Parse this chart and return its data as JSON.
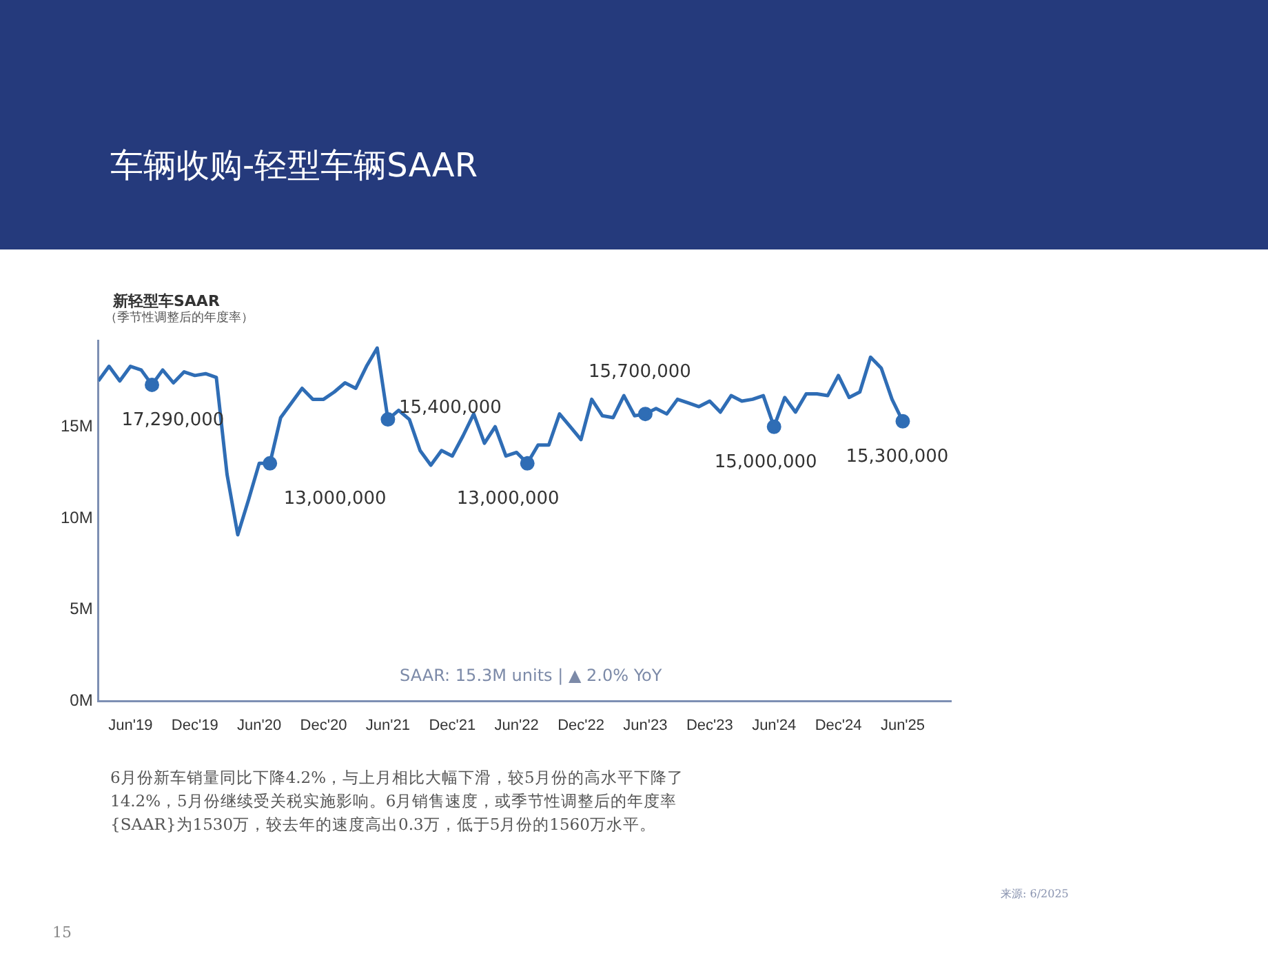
{
  "chart_data": {
    "type": "line",
    "title": "车辆收购-轻型车辆SAAR",
    "subtitle": "新轻型车SAAR",
    "ylabel": "（季节性调整后的年度率）",
    "categories": [
      null,
      null,
      null,
      "Jun'19",
      null,
      null,
      null,
      null,
      null,
      "Dec'19",
      null,
      null,
      null,
      null,
      null,
      "Jun'20",
      null,
      null,
      null,
      null,
      null,
      "Dec'20",
      null,
      null,
      null,
      null,
      null,
      "Jun'21",
      null,
      null,
      null,
      null,
      null,
      "Dec'21",
      null,
      null,
      null,
      null,
      null,
      "Jun'22",
      null,
      null,
      null,
      null,
      null,
      "Dec'22",
      null,
      null,
      null,
      null,
      null,
      "Jun'23",
      null,
      null,
      null,
      null,
      null,
      "Dec'23",
      null,
      null,
      null,
      null,
      null,
      "Jun'24",
      null,
      null,
      null,
      null,
      null,
      "Dec'24",
      null,
      null,
      null,
      null,
      null,
      "Jun'25"
    ],
    "series": [
      {
        "color": "#2f6db5",
        "values": [
          17500000,
          18300000,
          17500000,
          18300000,
          18100000,
          17290000,
          18100000,
          17400000,
          18000000,
          17800000,
          17900000,
          17700000,
          12400000,
          9100000,
          11000000,
          13000000,
          13000000,
          15500000,
          16300000,
          17100000,
          16500000,
          16500000,
          16900000,
          17400000,
          17100000,
          18300000,
          19300000,
          15400000,
          15900000,
          15400000,
          13700000,
          12900000,
          13700000,
          13400000,
          14500000,
          15700000,
          14100000,
          15000000,
          13400000,
          13600000,
          13000000,
          14000000,
          14000000,
          15700000,
          15000000,
          14300000,
          16500000,
          15600000,
          15500000,
          16700000,
          15600000,
          15700000,
          16000000,
          15700000,
          16500000,
          16300000,
          16100000,
          16400000,
          15800000,
          16700000,
          16400000,
          16500000,
          16700000,
          15000000,
          16600000,
          15800000,
          16800000,
          16800000,
          16700000,
          17800000,
          16600000,
          16900000,
          18800000,
          18200000,
          16500000,
          15300000
        ],
        "value_labels": [
          null,
          null,
          null,
          null,
          null,
          "17,290,000",
          null,
          null,
          null,
          null,
          null,
          null,
          null,
          null,
          null,
          null,
          "13,000,000",
          null,
          null,
          null,
          null,
          null,
          null,
          null,
          null,
          null,
          null,
          "15,400,000",
          null,
          null,
          null,
          null,
          null,
          null,
          null,
          null,
          null,
          null,
          null,
          null,
          "13,000,000",
          null,
          null,
          null,
          null,
          null,
          null,
          null,
          null,
          null,
          null,
          "15,700,000",
          null,
          null,
          null,
          null,
          null,
          null,
          null,
          null,
          null,
          null,
          null,
          "15,000,000",
          null,
          null,
          null,
          null,
          null,
          null,
          null,
          null,
          null,
          null,
          null,
          "15,300,000"
        ]
      }
    ],
    "ylim": [
      0,
      19700000
    ],
    "yticks": [
      {
        "value": 0,
        "label": "0M"
      },
      {
        "value": 5000000,
        "label": "5M"
      },
      {
        "value": 10000000,
        "label": "10M"
      },
      {
        "value": 15000000,
        "label": "15M"
      }
    ],
    "grid": false,
    "legend": false,
    "marker": "none",
    "line_style": "solid",
    "annotations": [
      "SAAR: 15.3M units | ▲ 2.0% YoY",
      "6月份新车销量同比下降4.2%，与上月相比大幅下滑，较5月份的高水平下降了14.2%，5月份继续受关税实施影响。6月销售速度，或季节性调整后的年度率{SAAR}为1530万，较去年的速度高出0.3万，低于5月份的1560万水平。",
      "来源: 6/2025",
      "15"
    ]
  }
}
